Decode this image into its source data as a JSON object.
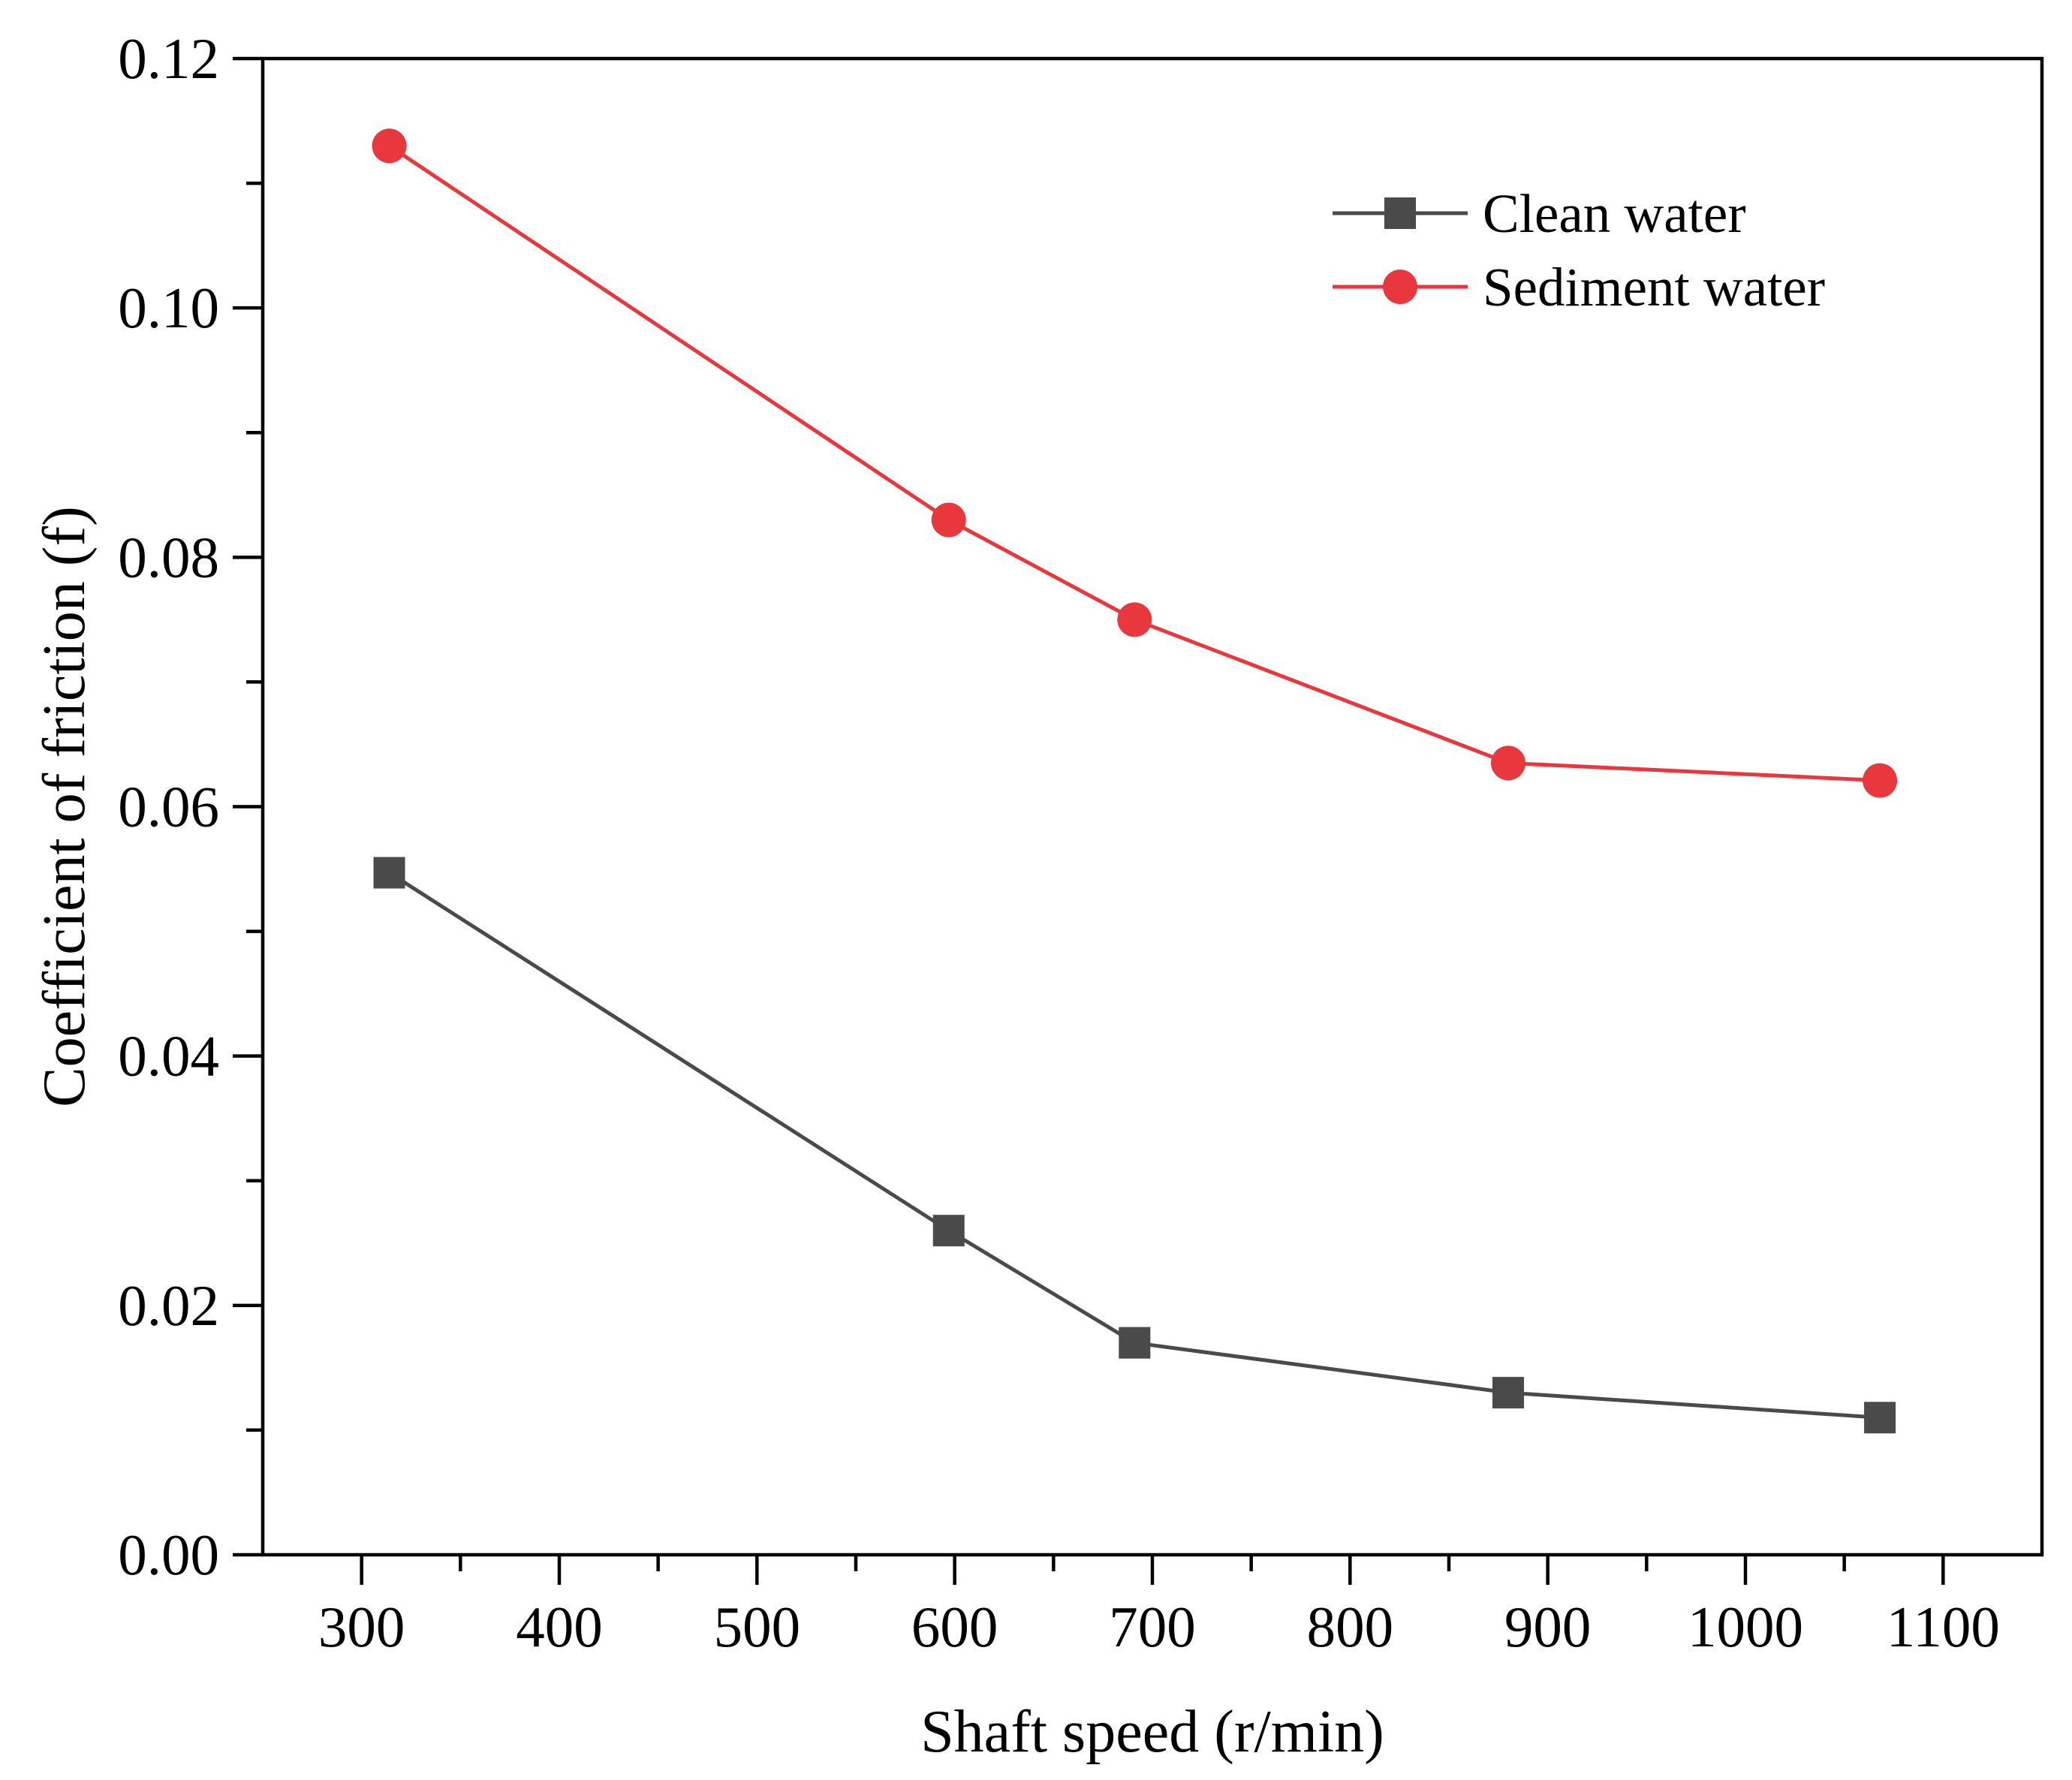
{
  "chart_data": {
    "type": "line",
    "title": "",
    "xlabel": "Shaft speed (r/min)",
    "ylabel": "Coefficient of friction (f)",
    "xlim": [
      250,
      1150
    ],
    "ylim": [
      0,
      0.12
    ],
    "xticks": [
      300,
      400,
      500,
      600,
      700,
      800,
      900,
      1000,
      1100
    ],
    "xtick_labels": [
      "300",
      "400",
      "500",
      "600",
      "700",
      "800",
      "900",
      "1000",
      "1100"
    ],
    "xminor": [
      350,
      450,
      550,
      650,
      750,
      850,
      950,
      1050
    ],
    "yticks": [
      0,
      0.02,
      0.04,
      0.06,
      0.08,
      0.1,
      0.12
    ],
    "ytick_labels": [
      "0.00",
      "0.02",
      "0.04",
      "0.06",
      "0.08",
      "0.10",
      "0.12"
    ],
    "yminor": [
      0.01,
      0.03,
      0.05,
      0.07,
      0.09,
      0.11
    ],
    "grid": false,
    "legend_position": "top-right",
    "series": [
      {
        "name": "Clean water",
        "marker": "square",
        "color": "#4a4a4a",
        "x": [
          314,
          597,
          691,
          880,
          1068
        ],
        "y": [
          0.0547,
          0.026,
          0.017,
          0.013,
          0.011
        ]
      },
      {
        "name": "Sediment water",
        "marker": "circle",
        "color": "#e8383d",
        "x": [
          314,
          597,
          691,
          880,
          1068
        ],
        "y": [
          0.113,
          0.083,
          0.075,
          0.0635,
          0.0621
        ]
      }
    ]
  }
}
